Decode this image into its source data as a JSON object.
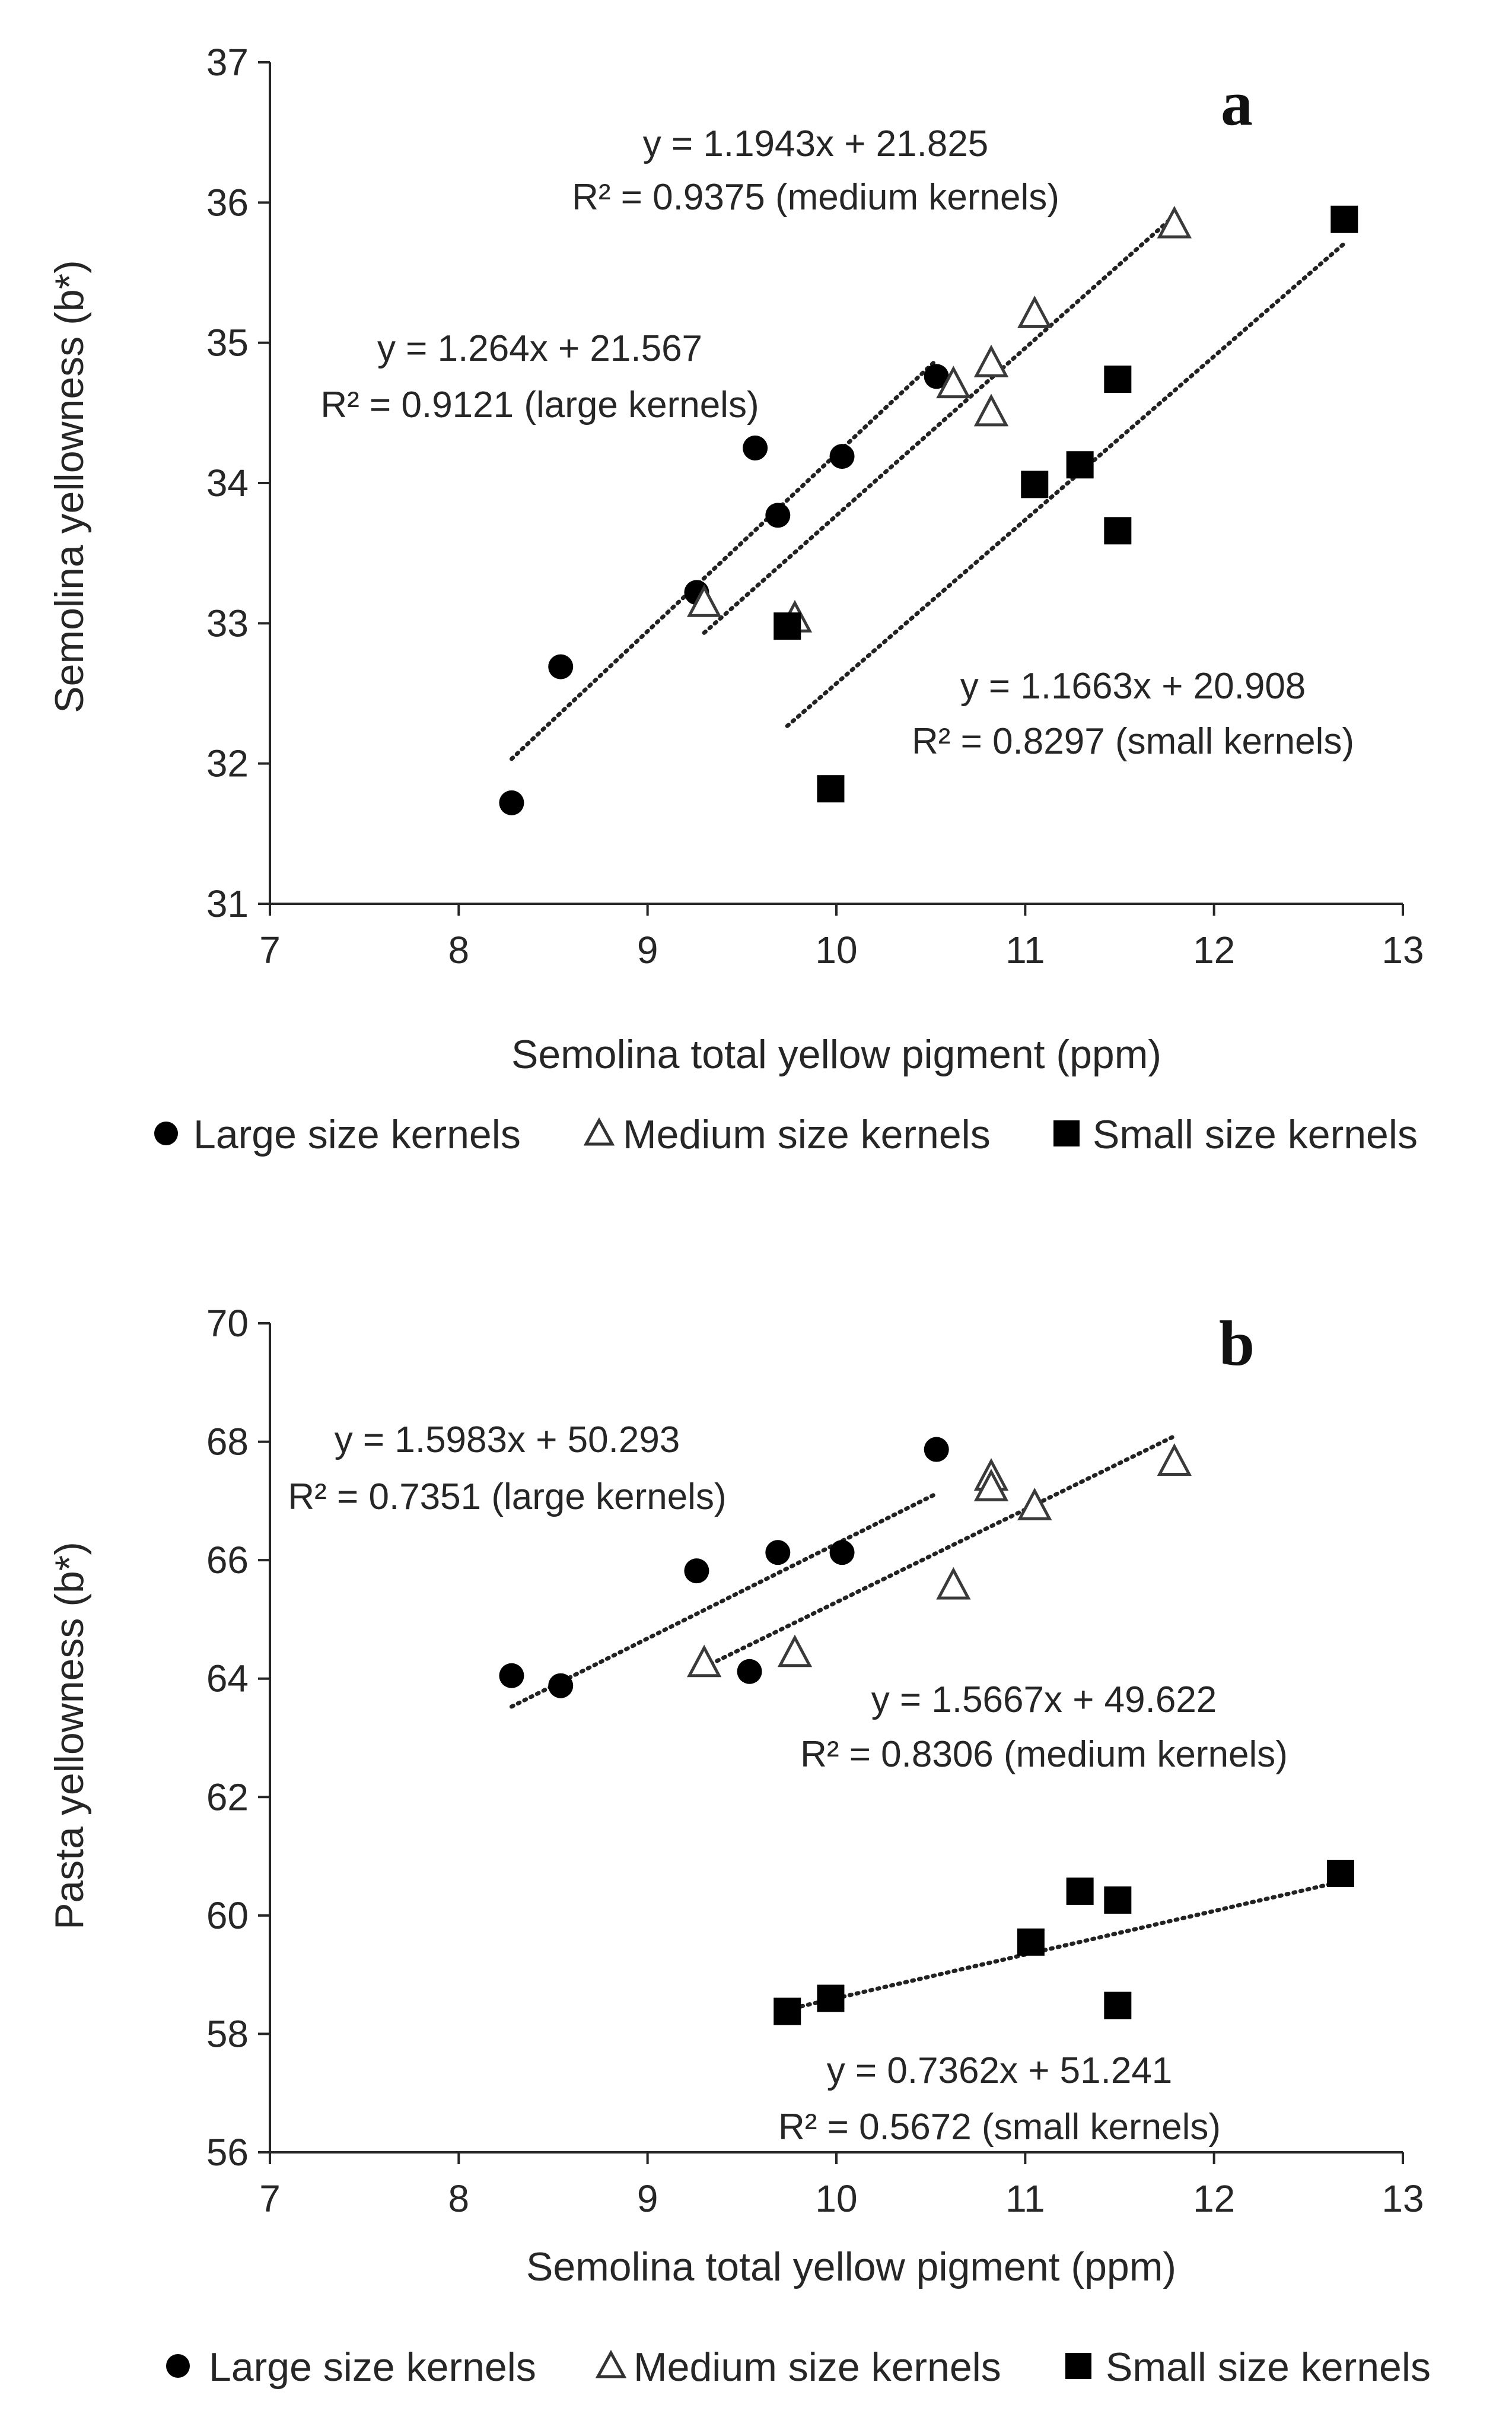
{
  "chart_data": [
    {
      "type": "scatter",
      "panel_label": "a",
      "xlabel": "Semolina total yellow pigment (ppm)",
      "ylabel": "Semolina yellowness (b*)",
      "xlim": [
        7,
        13
      ],
      "ylim": [
        31,
        37
      ],
      "xticks": [
        7,
        8,
        9,
        10,
        11,
        12,
        13
      ],
      "yticks": [
        31,
        32,
        33,
        34,
        35,
        36,
        37
      ],
      "legend_position": "bottom",
      "series": [
        {
          "name": "Large size kernels",
          "marker": "circle",
          "points": [
            [
              8.28,
              31.72
            ],
            [
              8.54,
              32.69
            ],
            [
              9.26,
              33.22
            ],
            [
              9.57,
              34.25
            ],
            [
              9.69,
              33.77
            ],
            [
              10.03,
              34.19
            ],
            [
              10.53,
              34.76
            ]
          ],
          "trend_x": [
            8.28,
            10.53
          ],
          "equation": "y = 1.264x + 21.567",
          "r2": "R² = 0.9121 (large kernels)"
        },
        {
          "name": "Medium size kernels",
          "marker": "triangle",
          "points": [
            [
              9.3,
              33.14
            ],
            [
              9.78,
              33.03
            ],
            [
              10.62,
              34.7
            ],
            [
              10.82,
              34.85
            ],
            [
              10.82,
              34.5
            ],
            [
              11.05,
              35.2
            ],
            [
              11.79,
              35.84
            ]
          ],
          "trend_x": [
            9.3,
            11.79
          ],
          "equation": "y = 1.1943x + 21.825",
          "r2": "R² = 0.9375 (medium kernels)"
        },
        {
          "name": "Small size kernels",
          "marker": "square",
          "points": [
            [
              9.74,
              32.98
            ],
            [
              9.97,
              31.82
            ],
            [
              11.05,
              33.99
            ],
            [
              11.29,
              34.13
            ],
            [
              11.49,
              34.74
            ],
            [
              11.49,
              33.66
            ],
            [
              12.69,
              35.88
            ]
          ],
          "trend_x": [
            9.74,
            12.69
          ],
          "equation": "y = 1.1663x + 20.908",
          "r2": "R² = 0.8297 (small kernels)"
        }
      ]
    },
    {
      "type": "scatter",
      "panel_label": "b",
      "xlabel": "Semolina total yellow pigment (ppm)",
      "ylabel": "Pasta yellowness (b*)",
      "xlim": [
        7,
        13
      ],
      "ylim": [
        56,
        70
      ],
      "xticks": [
        7,
        8,
        9,
        10,
        11,
        12,
        13
      ],
      "yticks": [
        56,
        58,
        60,
        62,
        64,
        66,
        68,
        70
      ],
      "legend_position": "bottom",
      "series": [
        {
          "name": "Large size kernels",
          "marker": "circle",
          "points": [
            [
              8.28,
              64.05
            ],
            [
              8.54,
              63.88
            ],
            [
              9.26,
              65.82
            ],
            [
              9.54,
              64.12
            ],
            [
              9.69,
              66.13
            ],
            [
              10.03,
              66.13
            ],
            [
              10.53,
              67.87
            ]
          ],
          "trend_x": [
            8.28,
            10.53
          ],
          "equation": "y = 1.5983x + 50.293",
          "r2": "R² = 0.7351 (large kernels)"
        },
        {
          "name": "Medium size kernels",
          "marker": "triangle",
          "points": [
            [
              9.3,
              64.25
            ],
            [
              9.78,
              64.42
            ],
            [
              10.62,
              65.56
            ],
            [
              10.82,
              67.4
            ],
            [
              10.82,
              67.22
            ],
            [
              11.05,
              66.9
            ],
            [
              11.79,
              67.65
            ]
          ],
          "trend_x": [
            9.3,
            11.79
          ],
          "equation": "y = 1.5667x + 49.622",
          "r2": "R² = 0.8306 (medium kernels)"
        },
        {
          "name": "Small size kernels",
          "marker": "square",
          "points": [
            [
              9.74,
              58.38
            ],
            [
              9.97,
              58.6
            ],
            [
              11.03,
              59.55
            ],
            [
              11.29,
              60.41
            ],
            [
              11.49,
              60.26
            ],
            [
              11.49,
              58.48
            ],
            [
              12.67,
              60.71
            ]
          ],
          "trend_x": [
            9.74,
            12.67
          ],
          "equation": "y = 0.7362x + 51.241",
          "r2": "R² = 0.5672 (small kernels)"
        }
      ]
    }
  ]
}
